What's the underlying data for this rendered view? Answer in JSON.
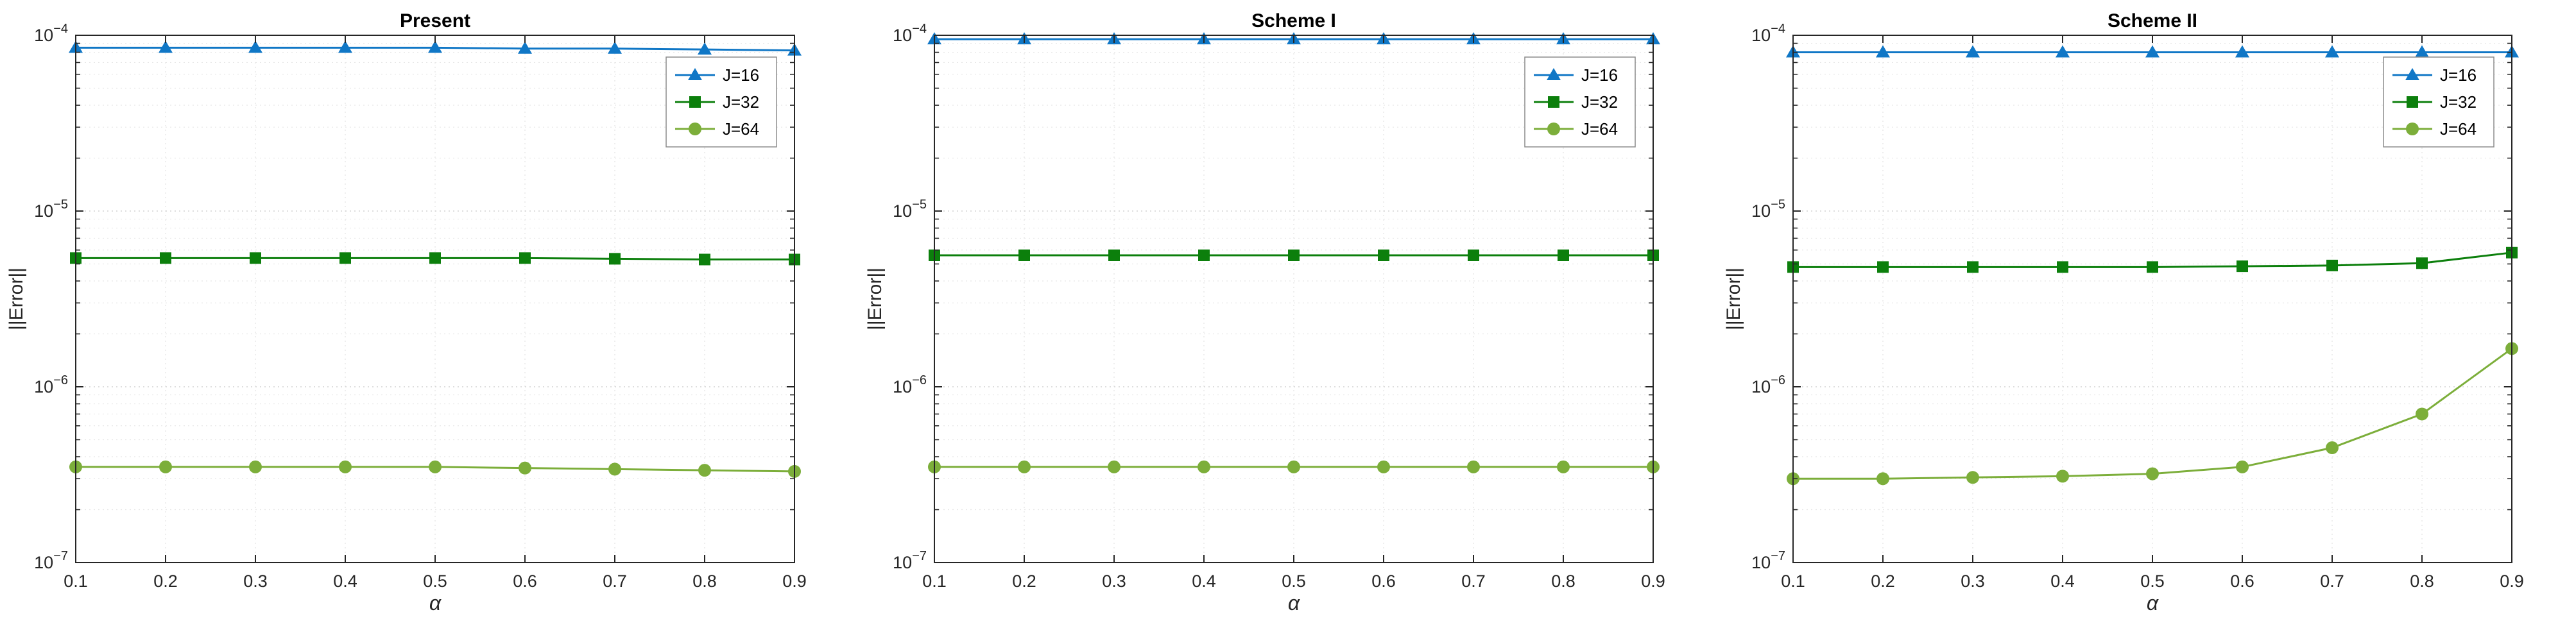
{
  "style": {
    "background": "#ffffff",
    "axis_color": "#262626",
    "grid_major": "#d4d4d4",
    "grid_minor": "#e7e7e7",
    "legend_border": "#8c8c8c",
    "tick_label_color": "#262626"
  },
  "chart_data": [
    {
      "type": "line",
      "title": "Present",
      "xlabel": "α",
      "ylabel": "||Error||",
      "x": [
        0.1,
        0.2,
        0.3,
        0.4,
        0.5,
        0.6,
        0.7,
        0.8,
        0.9
      ],
      "xticks": [
        0.1,
        0.2,
        0.3,
        0.4,
        0.5,
        0.6,
        0.7,
        0.8,
        0.9
      ],
      "xlim": [
        0.1,
        0.9
      ],
      "ylim": [
        1e-07,
        0.0001
      ],
      "yscale": "log",
      "grid": true,
      "legend_position": "upper right",
      "series": [
        {
          "name": "J=16",
          "color": "#1077c6",
          "marker": "triangle",
          "values": [
            8.5e-05,
            8.5e-05,
            8.5e-05,
            8.5e-05,
            8.5e-05,
            8.4e-05,
            8.4e-05,
            8.3e-05,
            8.2e-05
          ]
        },
        {
          "name": "J=32",
          "color": "#0c7f0c",
          "marker": "square",
          "values": [
            5.4e-06,
            5.4e-06,
            5.4e-06,
            5.4e-06,
            5.4e-06,
            5.4e-06,
            5.35e-06,
            5.3e-06,
            5.3e-06
          ]
        },
        {
          "name": "J=64",
          "color": "#7cae3a",
          "marker": "circle",
          "values": [
            3.5e-07,
            3.5e-07,
            3.5e-07,
            3.5e-07,
            3.5e-07,
            3.45e-07,
            3.4e-07,
            3.35e-07,
            3.3e-07
          ]
        }
      ]
    },
    {
      "type": "line",
      "title": "Scheme I",
      "xlabel": "α",
      "ylabel": "||Error||",
      "x": [
        0.1,
        0.2,
        0.3,
        0.4,
        0.5,
        0.6,
        0.7,
        0.8,
        0.9
      ],
      "xticks": [
        0.1,
        0.2,
        0.3,
        0.4,
        0.5,
        0.6,
        0.7,
        0.8,
        0.9
      ],
      "xlim": [
        0.1,
        0.9
      ],
      "ylim": [
        1e-07,
        0.0001
      ],
      "yscale": "log",
      "grid": true,
      "legend_position": "upper right",
      "series": [
        {
          "name": "J=16",
          "color": "#1077c6",
          "marker": "triangle",
          "values": [
            9.5e-05,
            9.5e-05,
            9.5e-05,
            9.5e-05,
            9.5e-05,
            9.5e-05,
            9.5e-05,
            9.5e-05,
            9.5e-05
          ]
        },
        {
          "name": "J=32",
          "color": "#0c7f0c",
          "marker": "square",
          "values": [
            5.6e-06,
            5.6e-06,
            5.6e-06,
            5.6e-06,
            5.6e-06,
            5.6e-06,
            5.6e-06,
            5.6e-06,
            5.6e-06
          ]
        },
        {
          "name": "J=64",
          "color": "#7cae3a",
          "marker": "circle",
          "values": [
            3.5e-07,
            3.5e-07,
            3.5e-07,
            3.5e-07,
            3.5e-07,
            3.5e-07,
            3.5e-07,
            3.5e-07,
            3.5e-07
          ]
        }
      ]
    },
    {
      "type": "line",
      "title": "Scheme II",
      "xlabel": "α",
      "ylabel": "||Error||",
      "x": [
        0.1,
        0.2,
        0.3,
        0.4,
        0.5,
        0.6,
        0.7,
        0.8,
        0.9
      ],
      "xticks": [
        0.1,
        0.2,
        0.3,
        0.4,
        0.5,
        0.6,
        0.7,
        0.8,
        0.9
      ],
      "xlim": [
        0.1,
        0.9
      ],
      "ylim": [
        1e-07,
        0.0001
      ],
      "yscale": "log",
      "grid": true,
      "legend_position": "upper right",
      "series": [
        {
          "name": "J=16",
          "color": "#1077c6",
          "marker": "triangle",
          "values": [
            8e-05,
            8e-05,
            8e-05,
            8e-05,
            8e-05,
            8e-05,
            8e-05,
            8e-05,
            8e-05
          ]
        },
        {
          "name": "J=32",
          "color": "#0c7f0c",
          "marker": "square",
          "values": [
            4.8e-06,
            4.8e-06,
            4.8e-06,
            4.8e-06,
            4.8e-06,
            4.85e-06,
            4.9e-06,
            5.05e-06,
            5.8e-06
          ]
        },
        {
          "name": "J=64",
          "color": "#7cae3a",
          "marker": "circle",
          "values": [
            3e-07,
            3e-07,
            3.05e-07,
            3.1e-07,
            3.2e-07,
            3.5e-07,
            4.5e-07,
            7e-07,
            1.65e-06
          ]
        }
      ]
    }
  ]
}
